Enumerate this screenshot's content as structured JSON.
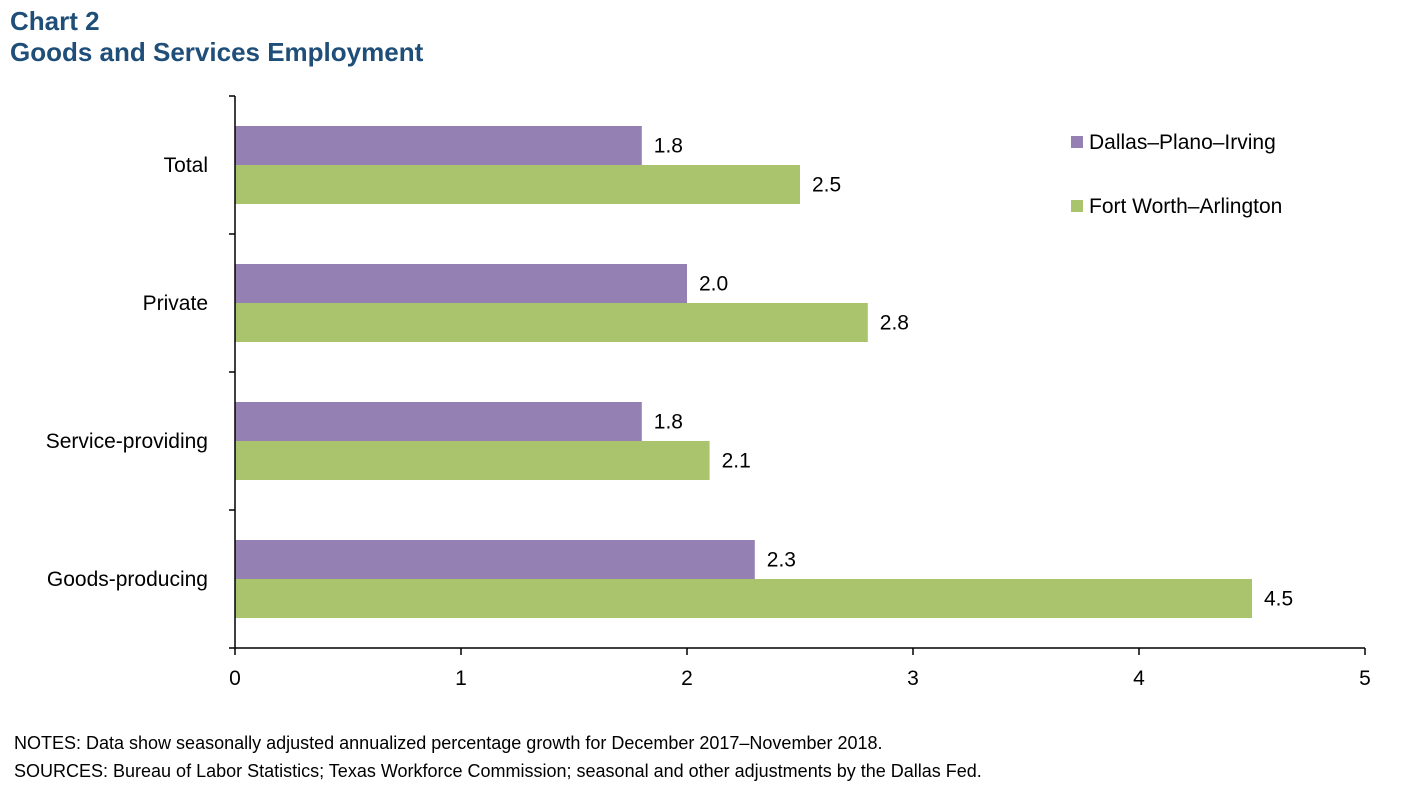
{
  "titles": {
    "chart_number": "Chart 2",
    "chart_title": "Goods and Services Employment"
  },
  "chart_data": {
    "type": "bar",
    "orientation": "horizontal",
    "title": "Goods and Services Employment",
    "categories": [
      "Total",
      "Private",
      "Service-providing",
      "Goods-producing"
    ],
    "series": [
      {
        "name": "Dallas–Plano–Irving",
        "color": "#9580b4",
        "values": [
          1.8,
          2.0,
          1.8,
          2.3
        ],
        "data_labels": [
          "1.8",
          "2.0",
          "1.8",
          "2.3"
        ]
      },
      {
        "name": "Fort Worth–Arlington",
        "color": "#a9c46d",
        "values": [
          2.5,
          2.8,
          2.1,
          4.5
        ],
        "data_labels": [
          "2.5",
          "2.8",
          "2.1",
          "4.5"
        ]
      }
    ],
    "xlim": [
      0,
      5
    ],
    "xticks": [
      0,
      1,
      2,
      3,
      4,
      5
    ],
    "xtick_labels": [
      "0",
      "1",
      "2",
      "3",
      "4",
      "5"
    ],
    "xlabel": "",
    "ylabel": "",
    "grid": false,
    "legend_position": "top-right"
  },
  "notes": {
    "notes_text": "NOTES: Data show seasonally adjusted annualized  percentage growth for December 2017–November  2018.",
    "sources_text": "SOURCES: Bureau of Labor Statistics; Texas Workforce Commission;  seasonal and other adjustments by the Dallas Fed."
  }
}
